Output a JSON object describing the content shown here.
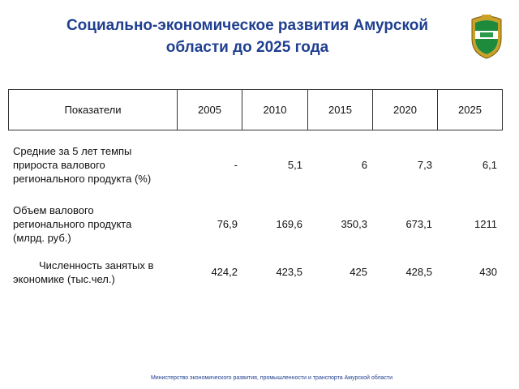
{
  "header": {
    "title_lines": [
      "Социально-экономическое развития Амурской",
      "области до 2025 года"
    ]
  },
  "table": {
    "columns": [
      "Показатели",
      "2005",
      "2010",
      "2015",
      "2020",
      "2025"
    ],
    "rows": [
      {
        "label_lines": [
          "Средние за 5 лет темпы",
          "прироста валового",
          "регионального продукта (%)"
        ],
        "values": [
          "-",
          "5,1",
          "6",
          "7,3",
          "6,1"
        ]
      },
      {
        "label_lines": [
          "Объем валового",
          "регионального продукта",
          "(млрд. руб.)"
        ],
        "values": [
          "76,9",
          "169,6",
          "350,3",
          "673,1",
          "1211"
        ]
      },
      {
        "label_lines": [
          "Численность занятых в",
          "экономике (тыс.чел.)"
        ],
        "values": [
          "424,2",
          "423,5",
          "425",
          "428,5",
          "430"
        ]
      }
    ]
  },
  "footer": "Министерство экономического развития, промышленности и транспорта Амурской области"
}
